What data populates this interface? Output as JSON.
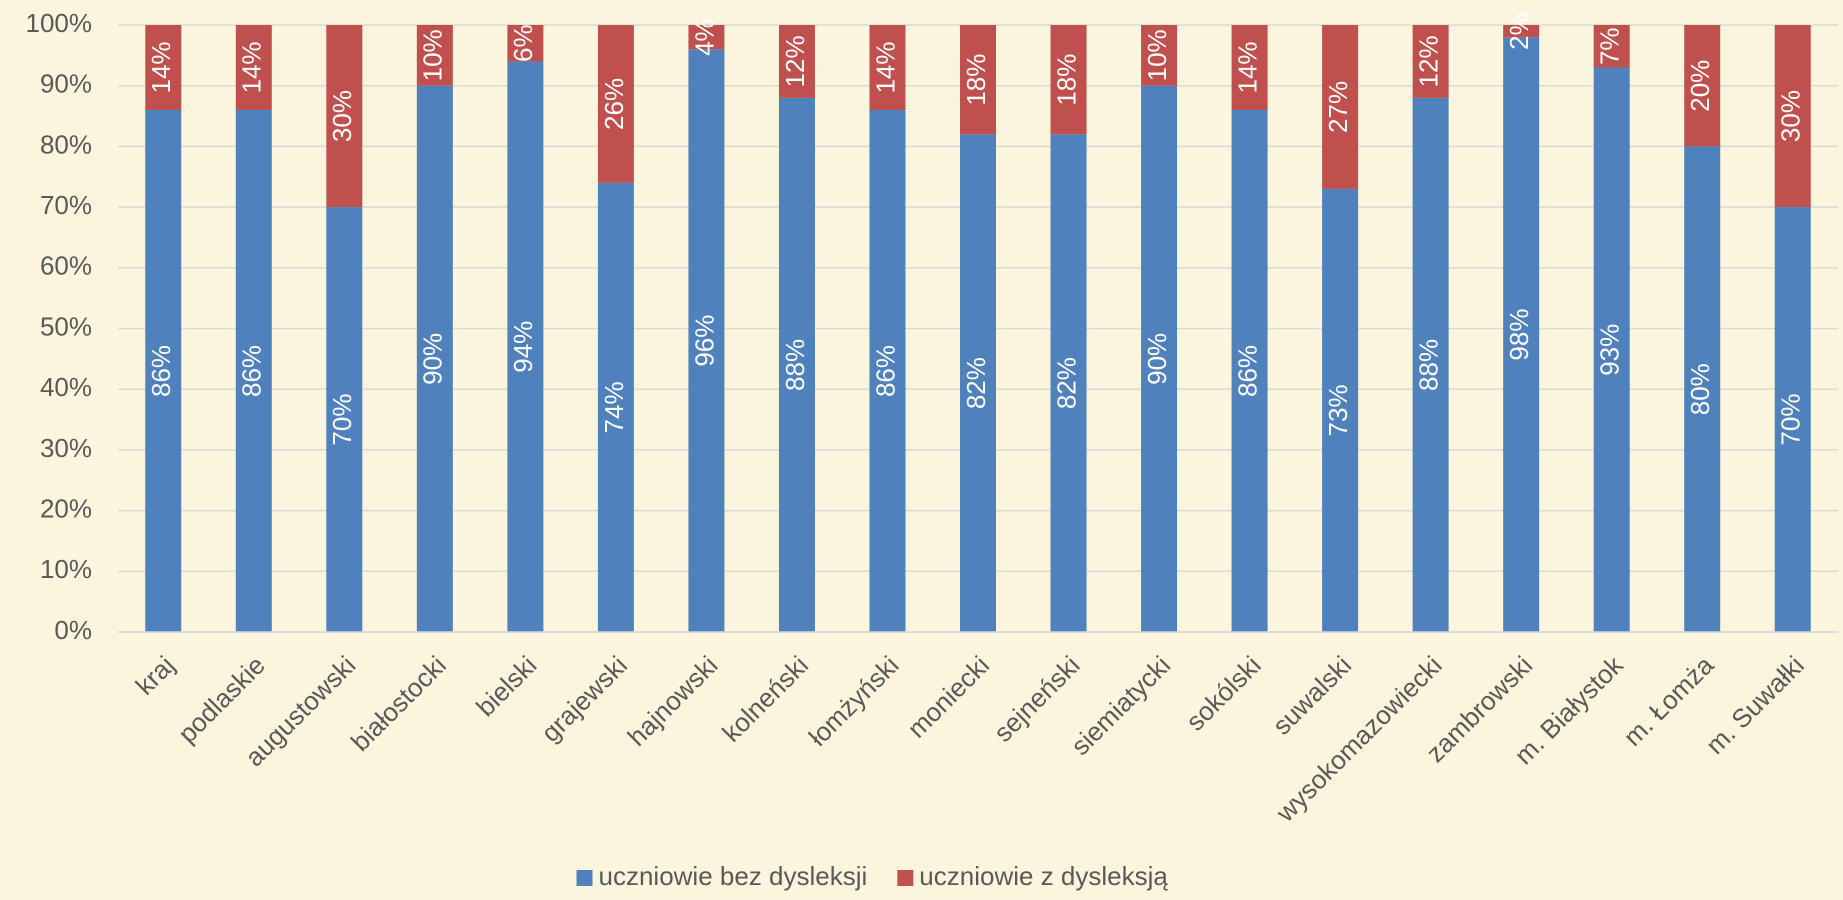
{
  "chart_data": {
    "type": "bar",
    "stacked": true,
    "categories": [
      "kraj",
      "podlaskie",
      "augustowski",
      "białostocki",
      "bielski",
      "grajewski",
      "hajnowski",
      "kolneński",
      "łomżyński",
      "moniecki",
      "sejneński",
      "siemiatycki",
      "sokólski",
      "suwalski",
      "wysokomazowiecki",
      "zambrowski",
      "m. Białystok",
      "m. Łomża",
      "m. Suwałki"
    ],
    "series": [
      {
        "name": "uczniowie bez dysleksji",
        "color": "#4f81bd",
        "values": [
          86,
          86,
          70,
          90,
          94,
          74,
          96,
          88,
          86,
          82,
          82,
          90,
          86,
          73,
          88,
          98,
          93,
          80,
          70
        ],
        "value_labels": [
          "86%",
          "86%",
          "70%",
          "90%",
          "94%",
          "74%",
          "96%",
          "88%",
          "86%",
          "82%",
          "82%",
          "90%",
          "86%",
          "73%",
          "88%",
          "98%",
          "93%",
          "80%",
          "70%"
        ]
      },
      {
        "name": "uczniowie z dysleksją",
        "color": "#c0504d",
        "values": [
          14,
          14,
          30,
          10,
          6,
          26,
          4,
          12,
          14,
          18,
          18,
          10,
          14,
          27,
          12,
          2,
          7,
          20,
          30
        ],
        "value_labels": [
          "14%",
          "14%",
          "30%",
          "10%",
          "6%",
          "26%",
          "4%",
          "12%",
          "14%",
          "18%",
          "18%",
          "10%",
          "14%",
          "27%",
          "12%",
          "2%",
          "7%",
          "20%",
          "30%"
        ]
      }
    ],
    "ylim": [
      0,
      100
    ],
    "yticks": [
      {
        "value": 0,
        "label": "0%"
      },
      {
        "value": 10,
        "label": "10%"
      },
      {
        "value": 20,
        "label": "20%"
      },
      {
        "value": 30,
        "label": "30%"
      },
      {
        "value": 40,
        "label": "40%"
      },
      {
        "value": 50,
        "label": "50%"
      },
      {
        "value": 60,
        "label": "60%"
      },
      {
        "value": 70,
        "label": "70%"
      },
      {
        "value": 80,
        "label": "80%"
      },
      {
        "value": 90,
        "label": "90%"
      },
      {
        "value": 100,
        "label": "100%"
      }
    ],
    "grid": true,
    "legend": "bottom"
  }
}
